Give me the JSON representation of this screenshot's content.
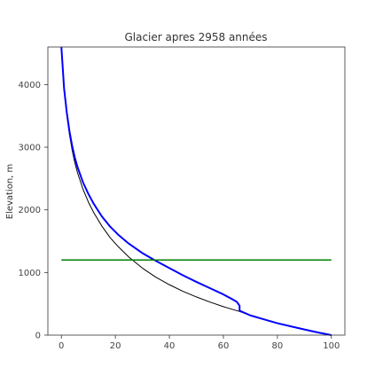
{
  "chart_data": {
    "type": "line",
    "title": "Glacier apres 2958 années",
    "xlabel": "",
    "ylabel": "Elevation, m",
    "xlim": [
      -5,
      105
    ],
    "ylim": [
      0,
      4600
    ],
    "xticks": [
      0,
      20,
      40,
      60,
      80,
      100
    ],
    "yticks": [
      0,
      1000,
      2000,
      3000,
      4000
    ],
    "grid": false,
    "series": [
      {
        "color": "#000000",
        "x": [
          0.0,
          1.0,
          2.0,
          3.0,
          4.0,
          5.0,
          6.0,
          8.0,
          10.0,
          12.0,
          15.0,
          18.0,
          21.0,
          25.0,
          30.0,
          35.0,
          40.0,
          45.0,
          50.0,
          55.0,
          60.0,
          65.0,
          66.0,
          70.0,
          75.0,
          80.0,
          85.0,
          90.0,
          95.0,
          100.0
        ],
        "y": [
          4600,
          3920,
          3515,
          3200,
          2950,
          2750,
          2590,
          2330,
          2125,
          1955,
          1740,
          1560,
          1415,
          1245,
          1070,
          925,
          805,
          700,
          610,
          528,
          455,
          390,
          378,
          315,
          252,
          190,
          140,
          90,
          42,
          0
        ]
      },
      {
        "color": "#0000ff",
        "x": [
          0.0,
          1.0,
          2.0,
          3.0,
          4.0,
          5.0,
          6.0,
          8.0,
          10.0,
          12.0,
          15.0,
          18.0,
          21.0,
          25.0,
          30.0,
          35.0,
          40.0,
          45.0,
          50.0,
          55.0,
          60.0,
          63.0,
          65.0,
          66.0,
          66.0,
          70.0,
          75.0,
          80.0,
          85.0,
          90.0,
          95.0,
          100.0
        ],
        "y": [
          4600,
          3940,
          3555,
          3255,
          3020,
          2830,
          2680,
          2440,
          2255,
          2095,
          1895,
          1735,
          1605,
          1460,
          1310,
          1185,
          1070,
          955,
          850,
          750,
          650,
          580,
          530,
          470,
          390,
          315,
          252,
          190,
          140,
          90,
          42,
          0
        ]
      },
      {
        "color": "#008000",
        "x": [
          0,
          100
        ],
        "y": [
          1200,
          1200
        ]
      }
    ]
  }
}
